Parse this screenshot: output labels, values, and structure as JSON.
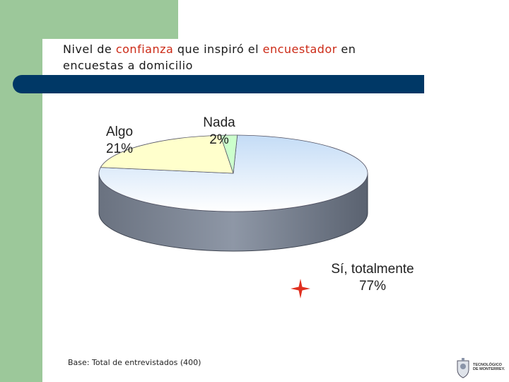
{
  "title": {
    "parts": [
      "Nivel de ",
      "confianza",
      " que inspiró el ",
      "encuestador",
      " en encuestas a domicilio"
    ]
  },
  "colors": {
    "accent": "#cc2a16",
    "band": "#003866",
    "sidebar": "#9cc89a"
  },
  "chart_data": {
    "type": "pie",
    "title": "Nivel de confianza que inspiró el encuestador en encuestas a domicilio",
    "categories": [
      "Sí, totalmente",
      "Algo",
      "Nada"
    ],
    "values": [
      77,
      21,
      2
    ],
    "labels": [
      {
        "name": "Sí, totalmente",
        "pct": "77%"
      },
      {
        "name": "Algo",
        "pct": "21%"
      },
      {
        "name": "Nada",
        "pct": "2%"
      }
    ],
    "colors": [
      "#c8e0f8",
      "#ffffcc",
      "#ccffcc"
    ],
    "style": "3d"
  },
  "footer": {
    "base": "Base: Total de entrevistados (400)",
    "logo_text_1": "TECNOLÓGICO",
    "logo_text_2": "DE MONTERREY."
  }
}
